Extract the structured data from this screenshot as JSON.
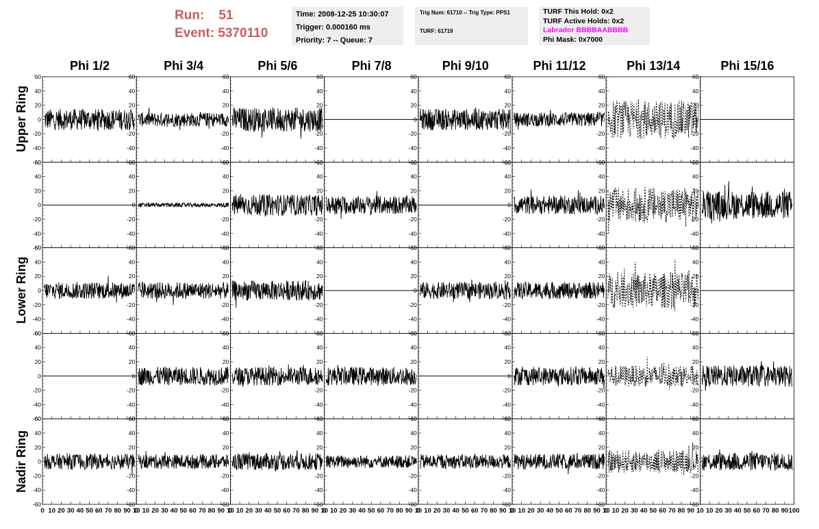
{
  "header": {
    "run_label": "Run:",
    "run_value": "51",
    "event_label": "Event:",
    "event_value": "5370110",
    "time": "Time: 2008-12-25 10:30:07",
    "trigger": "Trigger: 0.000160 ms",
    "priority": "Priority: 7 -- Queue: 7",
    "trig_num": "Trig Num: 61710 -- Trig Type: PPS1",
    "turf": "TURF: 61719",
    "turf_this_hold": "TURF This Hold: 0x2",
    "turf_active_holds": "TURF Active Holds: 0x2",
    "labrador": "Labrador BBBBAABBBB",
    "phi_mask": "Phi Mask: 0x7000"
  },
  "chart_data": {
    "type": "line",
    "columns": [
      "Phi 1/2",
      "Phi 3/4",
      "Phi 5/6",
      "Phi 7/8",
      "Phi 9/10",
      "Phi 11/12",
      "Phi 13/14",
      "Phi 15/16"
    ],
    "rows": [
      "Upper Ring",
      "",
      "Lower Ring",
      "",
      "Nadir Ring"
    ],
    "xlim": [
      0,
      100
    ],
    "ylim": [
      -60,
      60
    ],
    "xticks": [
      0,
      10,
      20,
      30,
      40,
      50,
      60,
      70,
      80,
      90,
      100
    ],
    "yticks": [
      -60,
      -40,
      -20,
      0,
      20,
      40,
      60
    ],
    "x_tick_labels": "0 10 20 30 40 50 60 70 80 90 10",
    "x_tick_labels_last": "10 20 30 40 50 60 70 80 90 100",
    "panel_amplitude_approx": [
      [
        15,
        10,
        17,
        0,
        15,
        10,
        27,
        0
      ],
      [
        0,
        3,
        15,
        13,
        0,
        13,
        25,
        20
      ],
      [
        12,
        12,
        14,
        0,
        12,
        12,
        25,
        0
      ],
      [
        0,
        13,
        13,
        13,
        0,
        13,
        15,
        15
      ],
      [
        11,
        10,
        12,
        9,
        10,
        11,
        16,
        13
      ]
    ],
    "dashed_column": "Phi 13/14",
    "flat_panels": [
      [
        0,
        3
      ],
      [
        0,
        7
      ],
      [
        1,
        0
      ],
      [
        1,
        4
      ],
      [
        2,
        3
      ],
      [
        2,
        7
      ],
      [
        3,
        0
      ],
      [
        3,
        4
      ]
    ]
  }
}
